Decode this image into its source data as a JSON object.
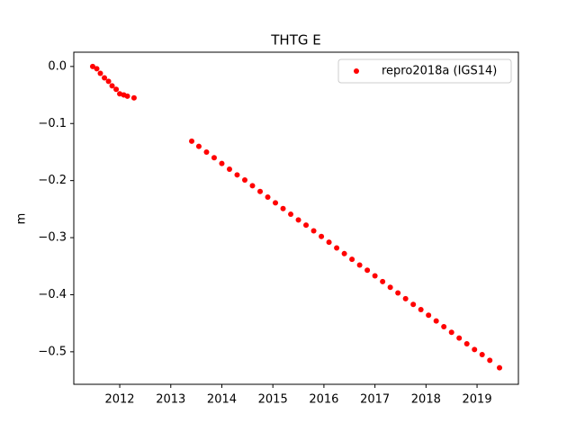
{
  "chart_data": {
    "type": "scatter",
    "title": "THTG E",
    "y_label": "m",
    "x": [
      2011.47,
      2011.55,
      2011.62,
      2011.7,
      2011.78,
      2011.85,
      2011.93,
      2012.0,
      2012.08,
      2012.15,
      2012.28,
      2013.41,
      2013.55,
      2013.7,
      2013.85,
      2014.0,
      2014.15,
      2014.3,
      2014.45,
      2014.6,
      2014.75,
      2014.9,
      2015.05,
      2015.2,
      2015.35,
      2015.5,
      2015.65,
      2015.8,
      2015.95,
      2016.1,
      2016.25,
      2016.4,
      2016.55,
      2016.7,
      2016.85,
      2017.0,
      2017.15,
      2017.3,
      2017.45,
      2017.6,
      2017.75,
      2017.9,
      2018.05,
      2018.2,
      2018.35,
      2018.5,
      2018.65,
      2018.8,
      2018.95,
      2019.1,
      2019.25,
      2019.44
    ],
    "series": [
      {
        "name": "repro2018a (IGS14)",
        "color": "#ff0000",
        "values": [
          0.0,
          -0.004,
          -0.012,
          -0.02,
          -0.026,
          -0.034,
          -0.04,
          -0.048,
          -0.05,
          -0.052,
          -0.055,
          -0.131,
          -0.14,
          -0.15,
          -0.16,
          -0.17,
          -0.18,
          -0.19,
          -0.199,
          -0.209,
          -0.219,
          -0.229,
          -0.239,
          -0.249,
          -0.259,
          -0.269,
          -0.278,
          -0.288,
          -0.298,
          -0.308,
          -0.318,
          -0.328,
          -0.338,
          -0.348,
          -0.357,
          -0.367,
          -0.377,
          -0.387,
          -0.397,
          -0.407,
          -0.417,
          -0.426,
          -0.436,
          -0.446,
          -0.456,
          -0.466,
          -0.476,
          -0.486,
          -0.496,
          -0.505,
          -0.515,
          -0.528
        ]
      }
    ],
    "xlim": [
      2011.1,
      2019.81
    ],
    "xticks": [
      2012,
      2013,
      2014,
      2015,
      2016,
      2017,
      2018,
      2019
    ],
    "ylim": [
      -0.557,
      0.025
    ],
    "yticks": [
      {
        "value": 0.0,
        "label": "0.0"
      },
      {
        "value": -0.1,
        "label": "−0.1"
      },
      {
        "value": -0.2,
        "label": "−0.2"
      },
      {
        "value": -0.3,
        "label": "−0.3"
      },
      {
        "value": -0.4,
        "label": "−0.4"
      },
      {
        "value": -0.5,
        "label": "−0.5"
      }
    ],
    "legend_loc": "upper right",
    "grid": false
  }
}
